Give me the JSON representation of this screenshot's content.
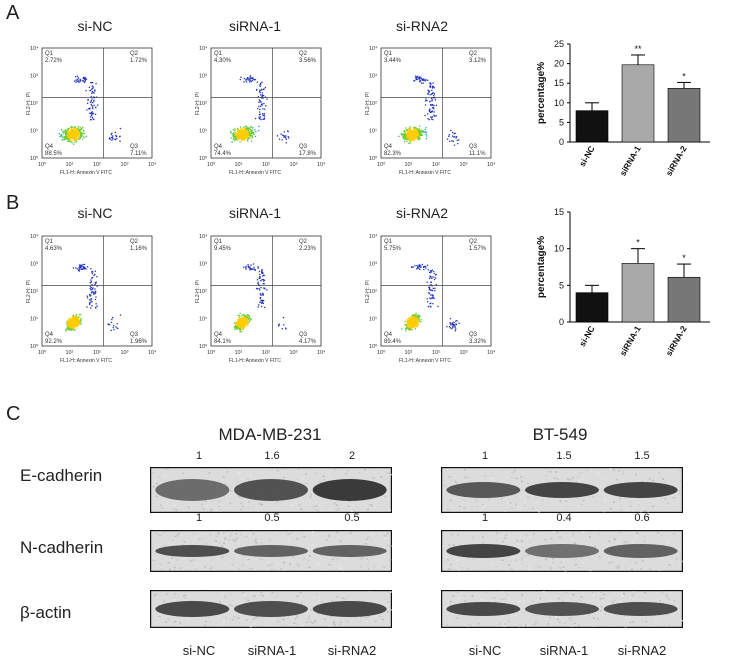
{
  "panels": {
    "a": "A",
    "b": "B",
    "c": "C"
  },
  "flow": {
    "axis_x": "FL1-H::Annexin V FITC",
    "axis_y": "FL2-H:: PI",
    "ticks": [
      "10⁰",
      "10¹",
      "10²",
      "10³",
      "10⁴"
    ],
    "quadrant_names": [
      "Q1",
      "Q2",
      "Q3",
      "Q4"
    ],
    "row_a": [
      {
        "title": "si-NC",
        "q1": "2.72%",
        "q2": "1.72%",
        "q3": "7.11%",
        "q4": "88.5%"
      },
      {
        "title": "siRNA-1",
        "q1": "4.30%",
        "q2": "3.56%",
        "q3": "17.8%",
        "q4": "74.4%"
      },
      {
        "title": "si-RNA2",
        "q1": "3.44%",
        "q2": "3.12%",
        "q3": "11.1%",
        "q4": "82.3%"
      }
    ],
    "row_b": [
      {
        "title": "si-NC",
        "q1": "4.63%",
        "q2": "1.16%",
        "q3": "1.96%",
        "q4": "92.2%"
      },
      {
        "title": "siRNA-1",
        "q1": "9.45%",
        "q2": "2.23%",
        "q3": "4.17%",
        "q4": "84.1%"
      },
      {
        "title": "si-RNA2",
        "q1": "5.75%",
        "q2": "1.57%",
        "q3": "3.32%",
        "q4": "89.4%"
      }
    ]
  },
  "chart_data": [
    {
      "type": "bar",
      "ylabel": "percentage%",
      "ylim": [
        0,
        25
      ],
      "yticks": [
        0,
        5,
        10,
        15,
        20,
        25
      ],
      "categories": [
        "si-NC",
        "siRNA-1",
        "siRNA-2"
      ],
      "values": [
        8,
        19.7,
        13.7
      ],
      "errors": [
        2,
        2.5,
        1.5
      ],
      "significance": [
        "",
        "**",
        "*"
      ],
      "colors": [
        "#111111",
        "#a9a9a9",
        "#777777"
      ]
    },
    {
      "type": "bar",
      "ylabel": "percentage%",
      "ylim": [
        0,
        15
      ],
      "yticks": [
        0,
        5,
        10,
        15
      ],
      "categories": [
        "si-NC",
        "siRNA-1",
        "siRNA-2"
      ],
      "values": [
        4,
        8,
        6.1
      ],
      "errors": [
        1,
        2,
        1.8
      ],
      "significance": [
        "",
        "*",
        "*"
      ],
      "colors": [
        "#111111",
        "#a9a9a9",
        "#777777"
      ]
    }
  ],
  "western": {
    "left_title": "MDA-MB-231",
    "right_title": "BT-549",
    "row_labels": [
      "E-cadherin",
      "N-cadherin",
      "β-actin"
    ],
    "e_cad_left": [
      "1",
      "1.6",
      "2"
    ],
    "e_cad_right": [
      "1",
      "1.5",
      "1.5"
    ],
    "n_cad_left": [
      "1",
      "0.5",
      "0.5"
    ],
    "n_cad_right": [
      "1",
      "0.4",
      "0.6"
    ],
    "lanes_left": [
      "si-NC",
      "siRNA-1",
      "si-RNA2"
    ],
    "lanes_right": [
      "si-NC",
      "siRNA-1",
      "si-RNA2"
    ]
  }
}
